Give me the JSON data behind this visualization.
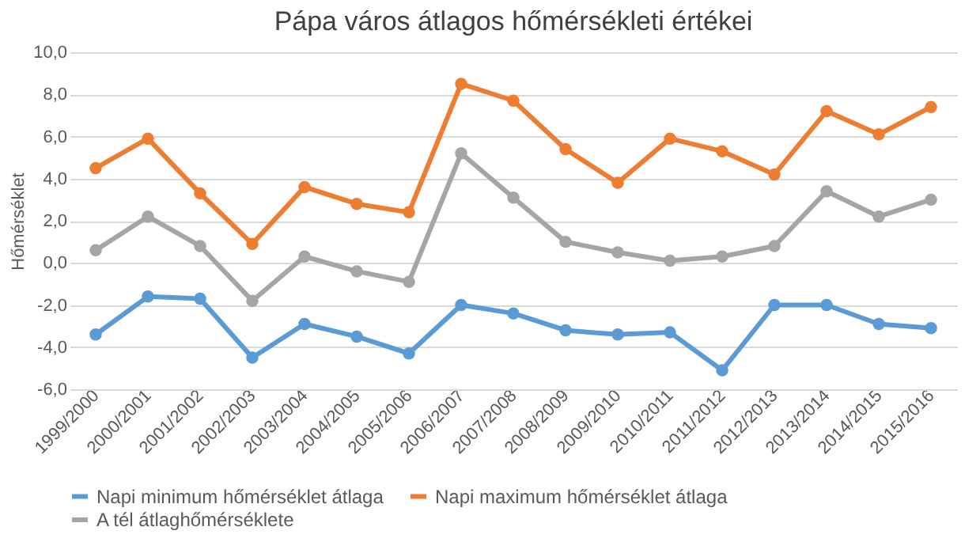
{
  "chart_data": {
    "type": "line",
    "title": "Pápa város átlagos hőmérsékleti értékei",
    "ylabel": "Hőmérséklet",
    "categories": [
      "1999/2000",
      "2000/2001",
      "2001/2002",
      "2002/2003",
      "2003/2004",
      "2004/2005",
      "2005/2006",
      "2006/2007",
      "2007/2008",
      "2008/2009",
      "2009/2010",
      "2010/2011",
      "2011/2012",
      "2012/2013",
      "2013/2014",
      "2014/2015",
      "2015/2016"
    ],
    "series": [
      {
        "name": "Napi minimum hőmérséklet átlaga",
        "color": "#5b9bd5",
        "values": [
          -3.4,
          -1.6,
          -1.7,
          -4.5,
          -2.9,
          -3.5,
          -4.3,
          -2.0,
          -2.4,
          -3.2,
          -3.4,
          -3.3,
          -5.1,
          -2.0,
          -2.0,
          -2.9,
          -3.1
        ]
      },
      {
        "name": "Napi maximum hőmérséklet átlaga",
        "color": "#ed7d31",
        "values": [
          4.5,
          5.9,
          3.3,
          0.9,
          3.6,
          2.8,
          2.4,
          8.5,
          7.7,
          5.4,
          3.8,
          5.9,
          5.3,
          4.2,
          7.2,
          6.1,
          7.4
        ]
      },
      {
        "name": "A tél átlaghőmérséklete",
        "color": "#a5a5a5",
        "values": [
          0.6,
          2.2,
          0.8,
          -1.8,
          0.3,
          -0.4,
          -0.9,
          5.2,
          3.1,
          1.0,
          0.5,
          0.1,
          0.3,
          0.8,
          3.4,
          2.2,
          3.0
        ]
      }
    ],
    "ylim": [
      -6,
      10
    ],
    "yticks": [
      {
        "value": -6,
        "label": "-6,0"
      },
      {
        "value": -4,
        "label": "-4,0"
      },
      {
        "value": -2,
        "label": "-2,0"
      },
      {
        "value": 0,
        "label": "0,0"
      },
      {
        "value": 2,
        "label": "2,0"
      },
      {
        "value": 4,
        "label": "4,0"
      },
      {
        "value": 6,
        "label": "6,0"
      },
      {
        "value": 8,
        "label": "8,0"
      },
      {
        "value": 10,
        "label": "10,0"
      }
    ],
    "grid": "y",
    "legend": "bottom",
    "marker": "circle",
    "line_style": "solid"
  }
}
